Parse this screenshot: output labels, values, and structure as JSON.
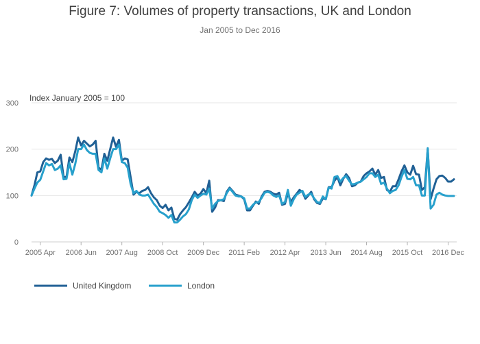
{
  "title": "Figure 7: Volumes of property transactions, UK and London",
  "subtitle": "Jan 2005 to Dec 2016",
  "chart_data": {
    "type": "line",
    "ylabel": "Index January 2005 = 100",
    "xlabel": "",
    "ylim": [
      0,
      300
    ],
    "yticks": [
      0,
      100,
      200,
      300
    ],
    "grid": "horizontal",
    "legend_position": "bottom-left",
    "x_start": "2005-01",
    "x_end": "2016-12",
    "xticks": [
      "2005 Apr",
      "2006 Jun",
      "2007 Aug",
      "2008 Oct",
      "2009 Dec",
      "2011 Feb",
      "2012 Apr",
      "2013 Jun",
      "2014 Aug",
      "2015 Oct",
      "2016 Dec"
    ],
    "series": [
      {
        "name": "United Kingdom",
        "color": "#206095",
        "values": [
          100,
          122,
          150,
          152,
          172,
          180,
          177,
          179,
          170,
          175,
          188,
          140,
          140,
          182,
          172,
          195,
          225,
          208,
          218,
          212,
          206,
          210,
          218,
          160,
          156,
          190,
          175,
          200,
          225,
          205,
          220,
          175,
          180,
          178,
          140,
          102,
          108,
          105,
          110,
          112,
          118,
          105,
          96,
          90,
          78,
          73,
          80,
          68,
          74,
          50,
          48,
          60,
          68,
          75,
          85,
          96,
          108,
          100,
          104,
          114,
          105,
          132,
          65,
          74,
          90,
          90,
          88,
          108,
          117,
          110,
          102,
          100,
          98,
          92,
          68,
          68,
          78,
          87,
          82,
          98,
          108,
          110,
          108,
          104,
          102,
          106,
          80,
          82,
          105,
          86,
          96,
          104,
          112,
          108,
          93,
          100,
          108,
          92,
          84,
          82,
          94,
          92,
          118,
          118,
          132,
          140,
          122,
          136,
          146,
          138,
          120,
          122,
          128,
          130,
          142,
          148,
          152,
          158,
          145,
          155,
          138,
          140,
          112,
          108,
          120,
          120,
          135,
          152,
          165,
          150,
          145,
          164,
          146,
          145,
          112,
          118,
          200,
          92,
          115,
          135,
          142,
          143,
          138,
          130,
          130,
          135
        ]
      },
      {
        "name": "London",
        "color": "#27a0cc",
        "values": [
          100,
          115,
          128,
          134,
          152,
          170,
          165,
          168,
          155,
          158,
          165,
          135,
          136,
          170,
          145,
          168,
          200,
          200,
          210,
          198,
          192,
          190,
          190,
          155,
          150,
          180,
          158,
          180,
          200,
          200,
          210,
          172,
          170,
          160,
          125,
          105,
          110,
          102,
          100,
          100,
          102,
          92,
          82,
          75,
          65,
          62,
          58,
          52,
          58,
          42,
          42,
          48,
          55,
          60,
          70,
          90,
          102,
          95,
          100,
          104,
          102,
          115,
          72,
          82,
          88,
          90,
          92,
          105,
          115,
          108,
          100,
          98,
          98,
          94,
          72,
          72,
          80,
          85,
          86,
          95,
          106,
          108,
          106,
          100,
          97,
          100,
          82,
          86,
          112,
          78,
          92,
          102,
          106,
          110,
          97,
          102,
          104,
          94,
          86,
          84,
          98,
          92,
          117,
          115,
          140,
          142,
          130,
          138,
          142,
          132,
          124,
          125,
          128,
          130,
          135,
          140,
          148,
          148,
          140,
          145,
          125,
          128,
          115,
          105,
          110,
          112,
          122,
          140,
          155,
          136,
          135,
          140,
          122,
          122,
          100,
          100,
          202,
          72,
          80,
          102,
          106,
          102,
          100,
          99,
          99,
          99
        ]
      }
    ]
  }
}
